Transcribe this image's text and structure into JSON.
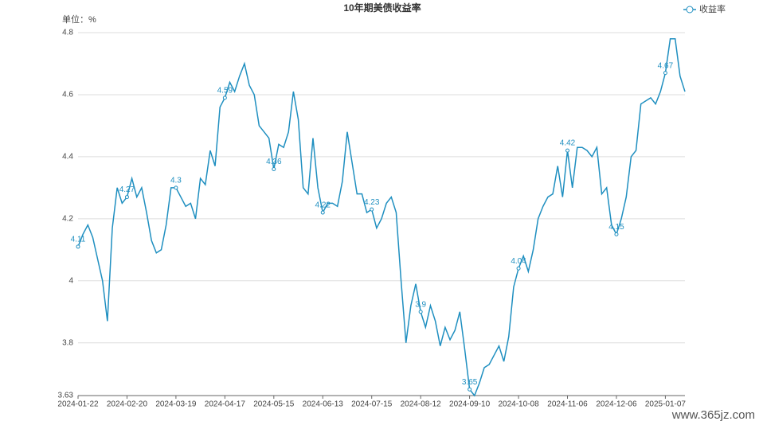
{
  "chart_data": {
    "type": "line",
    "title": "10年期美债收益率",
    "unit_label": "单位：%",
    "watermark": "www.365jz.com",
    "legend_position": "top-right",
    "grid": true,
    "categories": [
      "2024-01-22",
      null,
      null,
      null,
      null,
      null,
      null,
      null,
      null,
      null,
      "2024-02-20",
      null,
      null,
      null,
      null,
      null,
      null,
      null,
      null,
      null,
      "2024-03-19",
      null,
      null,
      null,
      null,
      null,
      null,
      null,
      null,
      null,
      "2024-04-17",
      null,
      null,
      null,
      null,
      null,
      null,
      null,
      null,
      null,
      "2024-05-15",
      null,
      null,
      null,
      null,
      null,
      null,
      null,
      null,
      null,
      "2024-06-13",
      null,
      null,
      null,
      null,
      null,
      null,
      null,
      null,
      null,
      "2024-07-15",
      null,
      null,
      null,
      null,
      null,
      null,
      null,
      null,
      null,
      "2024-08-12",
      null,
      null,
      null,
      null,
      null,
      null,
      null,
      null,
      null,
      "2024-09-10",
      null,
      null,
      null,
      null,
      null,
      null,
      null,
      null,
      null,
      "2024-10-08",
      null,
      null,
      null,
      null,
      null,
      null,
      null,
      null,
      null,
      "2024-11-06",
      null,
      null,
      null,
      null,
      null,
      null,
      null,
      null,
      null,
      "2024-12-06",
      null,
      null,
      null,
      null,
      null,
      null,
      null,
      null,
      null,
      "2025-01-07",
      null,
      null,
      null,
      null
    ],
    "series": [
      {
        "name": "收益率",
        "color": "#1f8fc0",
        "values": [
          4.11,
          4.15,
          4.18,
          4.14,
          4.07,
          4.0,
          3.87,
          4.17,
          4.3,
          4.25,
          4.27,
          4.33,
          4.27,
          4.3,
          4.22,
          4.13,
          4.09,
          4.1,
          4.18,
          4.3,
          4.3,
          4.27,
          4.24,
          4.25,
          4.2,
          4.33,
          4.31,
          4.42,
          4.37,
          4.56,
          4.59,
          4.64,
          4.61,
          4.66,
          4.7,
          4.63,
          4.6,
          4.5,
          4.48,
          4.46,
          4.36,
          4.44,
          4.43,
          4.48,
          4.61,
          4.52,
          4.3,
          4.28,
          4.46,
          4.3,
          4.22,
          4.25,
          4.25,
          4.24,
          4.32,
          4.48,
          4.38,
          4.28,
          4.28,
          4.22,
          4.23,
          4.17,
          4.2,
          4.25,
          4.27,
          4.22,
          4.0,
          3.8,
          3.92,
          3.99,
          3.9,
          3.85,
          3.92,
          3.87,
          3.79,
          3.85,
          3.81,
          3.84,
          3.9,
          3.78,
          3.65,
          3.63,
          3.67,
          3.72,
          3.73,
          3.76,
          3.79,
          3.74,
          3.82,
          3.98,
          4.04,
          4.08,
          4.03,
          4.1,
          4.2,
          4.24,
          4.27,
          4.28,
          4.37,
          4.27,
          4.42,
          4.3,
          4.43,
          4.43,
          4.42,
          4.4,
          4.43,
          4.28,
          4.3,
          4.18,
          4.15,
          4.2,
          4.27,
          4.4,
          4.42,
          4.57,
          4.58,
          4.59,
          4.57,
          4.61,
          4.67,
          4.78,
          4.78,
          4.66,
          4.61
        ],
        "value_labels": [
          "4.11",
          null,
          null,
          null,
          null,
          null,
          null,
          null,
          null,
          null,
          "4.27",
          null,
          null,
          null,
          null,
          null,
          null,
          null,
          null,
          null,
          "4.3",
          null,
          null,
          null,
          null,
          null,
          null,
          null,
          null,
          null,
          "4.59",
          null,
          null,
          null,
          null,
          null,
          null,
          null,
          null,
          null,
          "4.36",
          null,
          null,
          null,
          null,
          null,
          null,
          null,
          null,
          null,
          "4.22",
          null,
          null,
          null,
          null,
          null,
          null,
          null,
          null,
          null,
          "4.23",
          null,
          null,
          null,
          null,
          null,
          null,
          null,
          null,
          null,
          "3.9",
          null,
          null,
          null,
          null,
          null,
          null,
          null,
          null,
          null,
          "3.65",
          null,
          null,
          null,
          null,
          null,
          null,
          null,
          null,
          null,
          "4.04",
          null,
          null,
          null,
          null,
          null,
          null,
          null,
          null,
          null,
          "4.42",
          null,
          null,
          null,
          null,
          null,
          null,
          null,
          null,
          null,
          "4.15",
          null,
          null,
          null,
          null,
          null,
          null,
          null,
          null,
          null,
          "4.67",
          null,
          null,
          null,
          null
        ]
      }
    ],
    "ylim": [
      3.63,
      4.8
    ],
    "yticks": [
      3.63,
      3.8,
      4,
      4.2,
      4.4,
      4.6,
      4.8
    ]
  }
}
